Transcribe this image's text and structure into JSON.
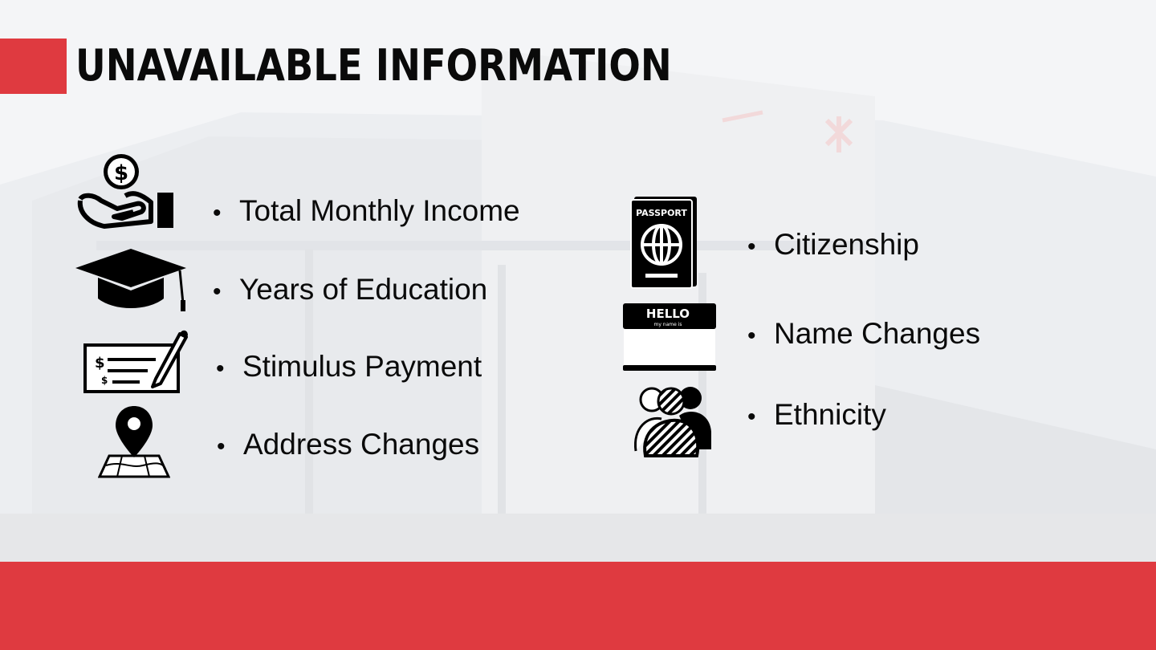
{
  "slide": {
    "title": "UNAVAILABLE INFORMATION",
    "accent_color": "#df3a40",
    "left_items": [
      {
        "label": "Total Monthly Income",
        "icon": "money-hand-icon"
      },
      {
        "label": "Years of Education",
        "icon": "graduation-cap-icon"
      },
      {
        "label": "Stimulus Payment",
        "icon": "check-payment-icon"
      },
      {
        "label": "Address Changes",
        "icon": "map-pin-icon"
      }
    ],
    "right_items": [
      {
        "label": "Citizenship",
        "icon": "passport-icon"
      },
      {
        "label": "Name Changes",
        "icon": "name-tag-icon"
      },
      {
        "label": "Ethnicity",
        "icon": "people-icon"
      }
    ],
    "passport_text": "PASSPORT",
    "hello_text": "HELLO",
    "hello_subtext": "my name is",
    "bullet": "•"
  }
}
